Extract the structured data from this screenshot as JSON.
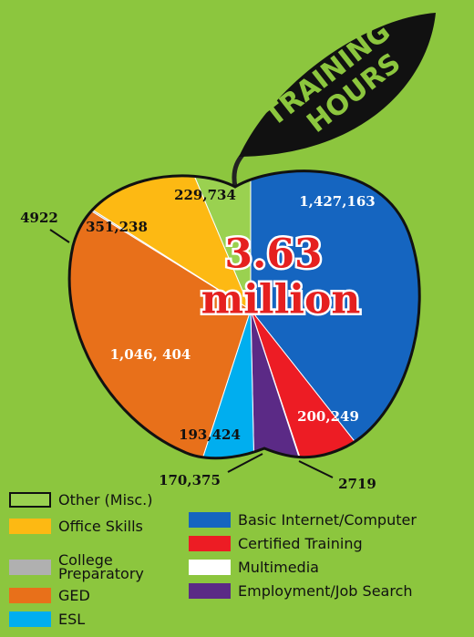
{
  "chart_data": {
    "type": "pie",
    "leaf_text": [
      "TRAINING",
      "HOURS"
    ],
    "center_text": [
      "3.63",
      "million"
    ],
    "categories": [
      "Basic Internet/Computer",
      "Certified Training",
      "Multimedia",
      "Employment/Job Search",
      "ESL",
      "GED",
      "College Preparatory",
      "Office Skills",
      "Other (Misc.)"
    ],
    "values": [
      1427163,
      200249,
      2719,
      170375,
      193424,
      1046404,
      4922,
      351238,
      229734
    ],
    "value_labels": [
      "1,427,163",
      "200,249",
      "2719",
      "170,375",
      "193,424",
      "1,046, 404",
      "4922",
      "351,238",
      "229,734"
    ],
    "colors": [
      "#1565c0",
      "#ed1c24",
      "#ffffff",
      "#5b2a86",
      "#00aeef",
      "#e8701a",
      "#b0b0b0",
      "#fdb913",
      "#9ad150"
    ]
  }
}
